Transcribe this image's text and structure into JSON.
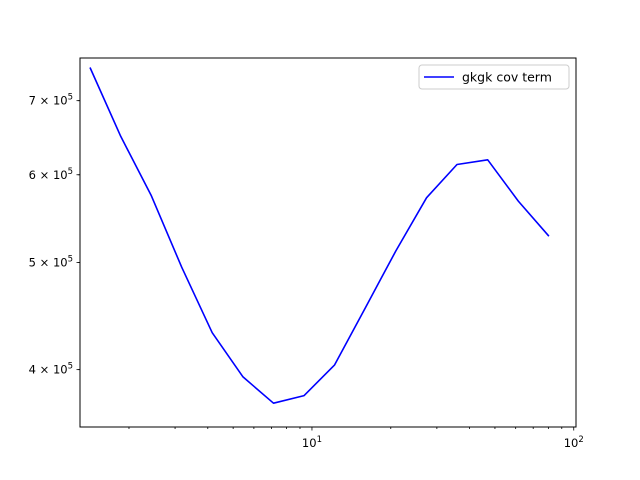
{
  "chart_data": {
    "type": "line",
    "x_scale": "log",
    "y_scale": "log",
    "xlim": [
      1.3,
      102
    ],
    "ylim": [
      355000,
      765000
    ],
    "grid": false,
    "legend_position": "top-right",
    "x_ticks": [
      {
        "value": 10,
        "base": "10",
        "exp": "1"
      },
      {
        "value": 100,
        "base": "10",
        "exp": "2"
      }
    ],
    "y_ticks": [
      {
        "value": 400000,
        "mant": "4",
        "base": "10",
        "exp": "5"
      },
      {
        "value": 500000,
        "mant": "5",
        "base": "10",
        "exp": "5"
      },
      {
        "value": 600000,
        "mant": "6",
        "base": "10",
        "exp": "5"
      },
      {
        "value": 700000,
        "mant": "7",
        "base": "10",
        "exp": "5"
      }
    ],
    "series": [
      {
        "name": "gkgk cov term",
        "color": "#0000ff",
        "x": [
          1.42,
          1.86,
          2.43,
          3.18,
          4.16,
          5.45,
          7.13,
          9.33,
          12.2,
          16.0,
          20.9,
          27.4,
          35.8,
          46.9,
          61.4,
          80.4
        ],
        "y": [
          750000,
          650000,
          575000,
          495000,
          432000,
          394000,
          373000,
          379000,
          404000,
          455000,
          512000,
          572000,
          613000,
          619000,
          568000,
          528000
        ]
      }
    ]
  }
}
